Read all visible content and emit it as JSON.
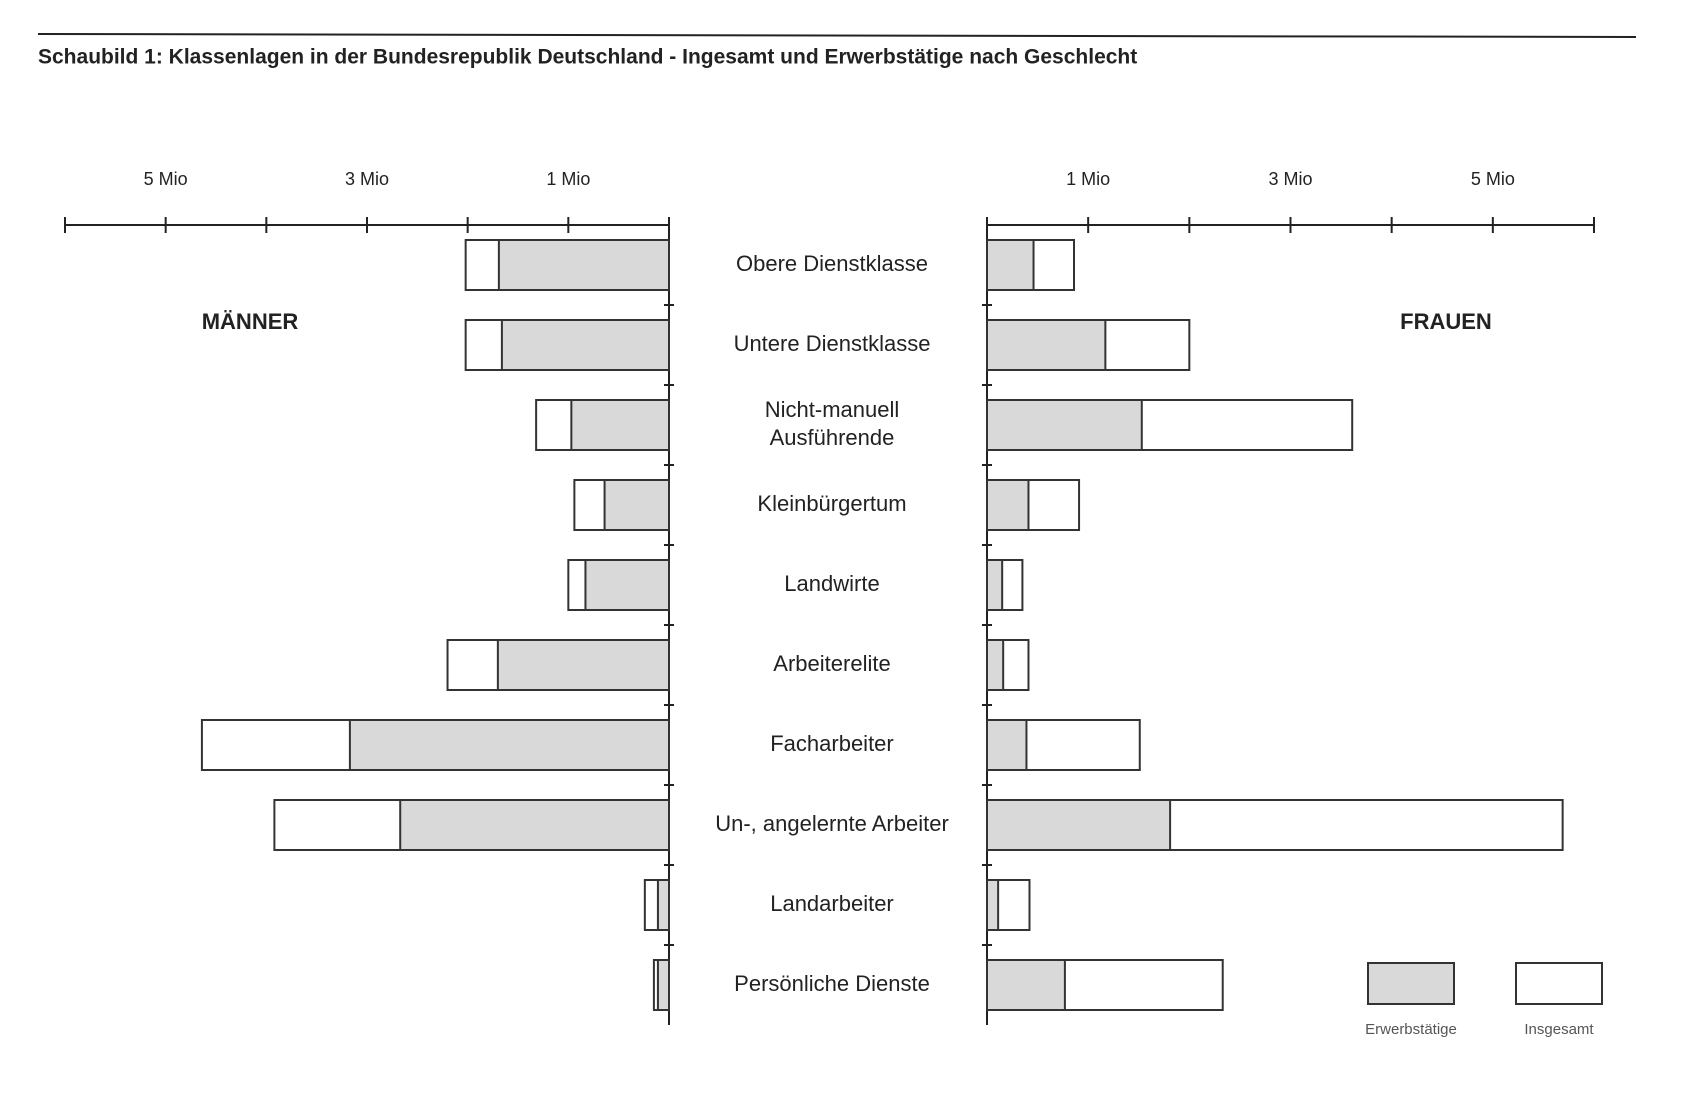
{
  "chart_data": {
    "type": "butterfly-bar",
    "title": "Schaubild 1: Klassenlagen in der Bundesrepublik Deutschland - Ingesamt und Erwerbstätige nach Geschlecht",
    "categories": [
      "Obere Dienstklasse",
      "Untere Dienstklasse",
      "Nicht-manuell Ausführende",
      "Kleinbürgertum",
      "Landwirte",
      "Arbeiterelite",
      "Facharbeiter",
      "Un-, angelernte Arbeiter",
      "Landarbeiter",
      "Persönliche Dienste"
    ],
    "xlim": [
      0,
      6
    ],
    "xticks": [
      {
        "value": 1,
        "label": "1 Mio"
      },
      {
        "value": 3,
        "label": "3 Mio"
      },
      {
        "value": 5,
        "label": "5 Mio"
      }
    ],
    "minor_xticks": [
      2,
      4,
      6
    ],
    "panels": [
      {
        "name": "MÄNNER",
        "side": "left",
        "series": [
          {
            "name": "Erwerbstätige",
            "color": "#d9d9d9",
            "values": [
              1.69,
              1.66,
              0.97,
              0.64,
              0.83,
              1.7,
              3.17,
              2.67,
              0.11,
              0.11
            ]
          },
          {
            "name": "Insgesamt",
            "color": "#ffffff",
            "values": [
              2.02,
              2.02,
              1.32,
              0.94,
              1.0,
              2.2,
              4.64,
              3.92,
              0.24,
              0.15
            ]
          }
        ]
      },
      {
        "name": "FRAUEN",
        "side": "right",
        "series": [
          {
            "name": "Erwerbstätige",
            "color": "#d9d9d9",
            "values": [
              0.46,
              1.17,
              1.53,
              0.41,
              0.15,
              0.16,
              0.39,
              1.81,
              0.11,
              0.77
            ]
          },
          {
            "name": "Insgesamt",
            "color": "#ffffff",
            "values": [
              0.86,
              2.0,
              3.61,
              0.91,
              0.35,
              0.41,
              1.51,
              5.69,
              0.42,
              2.33
            ]
          }
        ]
      }
    ]
  }
}
